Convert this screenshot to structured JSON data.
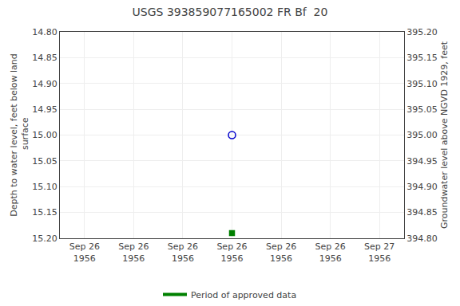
{
  "chart_data": {
    "type": "scatter",
    "title": "USGS 393859077165002 FR Bf  20",
    "ylabel": "Depth to water level, feet below land\n surface",
    "y2label": "Groundwater level above NGVD 1929, feet",
    "categories": [
      "Sep 26\n1956",
      "Sep 26\n1956",
      "Sep 26\n1956",
      "Sep 26\n1956",
      "Sep 26\n1956",
      "Sep 26\n1956",
      "Sep 27\n1956"
    ],
    "series": [
      {
        "type": "scatter",
        "marker": "open_circle",
        "color": "#0000cc",
        "values": [
          null,
          null,
          null,
          15.0,
          null,
          null,
          null
        ]
      },
      {
        "type": "scatter",
        "marker": "square",
        "color": "#008000",
        "values": [
          null,
          null,
          null,
          15.19,
          null,
          null,
          null
        ]
      },
      {
        "type": "line",
        "name": "Period of approved data",
        "color": "#008000",
        "values": [
          null,
          null,
          null,
          null,
          null,
          null,
          null
        ]
      }
    ],
    "ylim": [
      15.2,
      14.8
    ],
    "yticks": [
      {
        "value": 14.8,
        "label": "14.80"
      },
      14.85,
      {
        "value": 14.9,
        "label": "14.90"
      },
      14.95,
      {
        "value": 15.0,
        "label": "15.00"
      },
      15.05,
      {
        "value": 15.1,
        "label": "15.10"
      },
      15.15,
      {
        "value": 15.2,
        "label": "15.20"
      }
    ],
    "y2lim": [
      394.8,
      395.2
    ],
    "y2ticks": [
      {
        "value": 395.2,
        "label": "395.20"
      },
      395.15,
      {
        "value": 395.1,
        "label": "395.10"
      },
      395.05,
      {
        "value": 395.0,
        "label": "395.00"
      },
      394.95,
      {
        "value": 394.9,
        "label": "394.90"
      },
      394.85,
      {
        "value": 394.8,
        "label": "394.80"
      }
    ],
    "grid": true,
    "legend": "bottom"
  }
}
